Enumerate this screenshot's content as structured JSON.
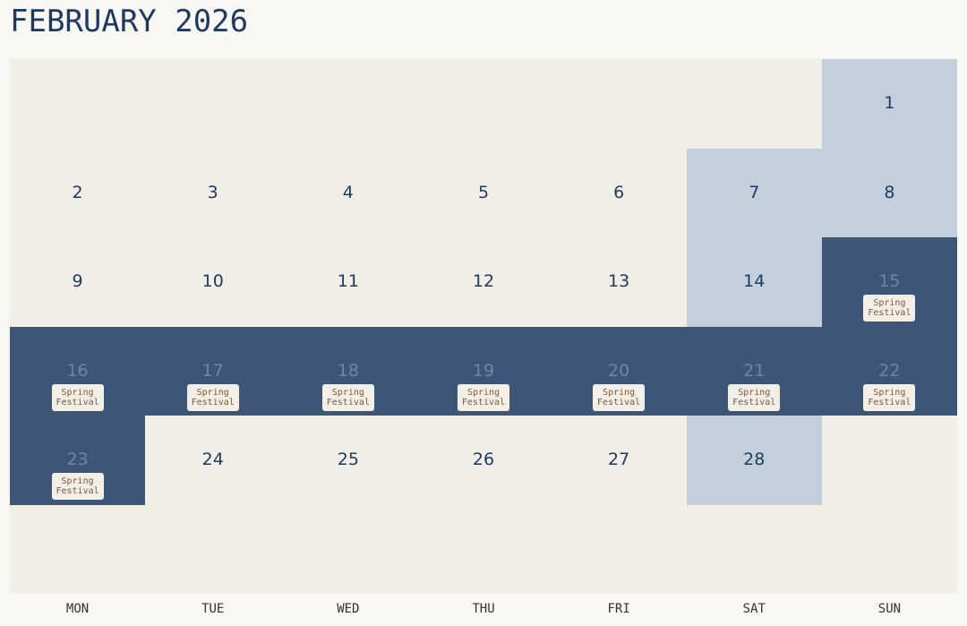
{
  "calendar": {
    "title": "FEBRUARY 2026",
    "weekdays": [
      "MON",
      "TUE",
      "WED",
      "THU",
      "FRI",
      "SAT",
      "SUN"
    ],
    "holiday_label_line1": "Spring",
    "holiday_label_line2": "Festival",
    "colors": {
      "weekday_cell": "#f1eee8",
      "weekend_cell": "#c3cfdb",
      "holiday_cell": "#3d5678",
      "text": "#1e3a5f"
    },
    "weeks": [
      [
        null,
        null,
        null,
        null,
        null,
        null,
        {
          "day": "1",
          "type": "weekend"
        }
      ],
      [
        {
          "day": "2",
          "type": "weekday"
        },
        {
          "day": "3",
          "type": "weekday"
        },
        {
          "day": "4",
          "type": "weekday"
        },
        {
          "day": "5",
          "type": "weekday"
        },
        {
          "day": "6",
          "type": "weekday"
        },
        {
          "day": "7",
          "type": "weekend"
        },
        {
          "day": "8",
          "type": "weekend"
        }
      ],
      [
        {
          "day": "9",
          "type": "weekday"
        },
        {
          "day": "10",
          "type": "weekday"
        },
        {
          "day": "11",
          "type": "weekday"
        },
        {
          "day": "12",
          "type": "weekday"
        },
        {
          "day": "13",
          "type": "weekday"
        },
        {
          "day": "14",
          "type": "weekend"
        },
        {
          "day": "15",
          "type": "holiday"
        }
      ],
      [
        {
          "day": "16",
          "type": "holiday"
        },
        {
          "day": "17",
          "type": "holiday"
        },
        {
          "day": "18",
          "type": "holiday"
        },
        {
          "day": "19",
          "type": "holiday"
        },
        {
          "day": "20",
          "type": "holiday"
        },
        {
          "day": "21",
          "type": "holiday"
        },
        {
          "day": "22",
          "type": "holiday"
        }
      ],
      [
        {
          "day": "23",
          "type": "holiday"
        },
        {
          "day": "24",
          "type": "weekday"
        },
        {
          "day": "25",
          "type": "weekday"
        },
        {
          "day": "26",
          "type": "weekday"
        },
        {
          "day": "27",
          "type": "weekday"
        },
        {
          "day": "28",
          "type": "weekend"
        },
        null
      ],
      [
        null,
        null,
        null,
        null,
        null,
        null,
        null
      ]
    ]
  }
}
